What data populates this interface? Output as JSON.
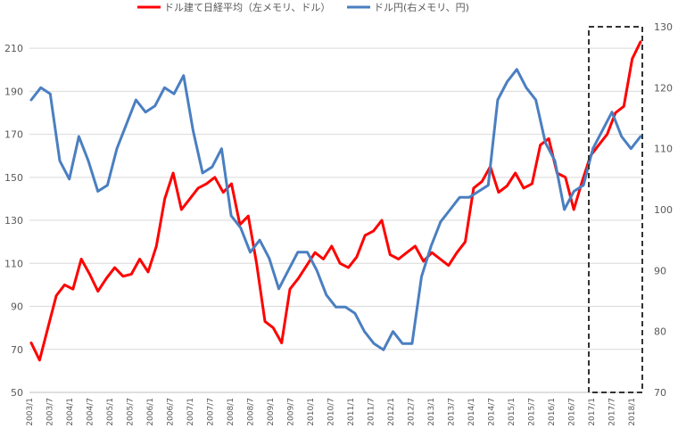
{
  "chart_data": {
    "type": "line",
    "legend_position": "top-center",
    "grid": true,
    "x_ticks": [
      "2003/1",
      "2003/7",
      "2004/1",
      "2004/7",
      "2005/1",
      "2005/7",
      "2006/1",
      "2006/7",
      "2007/1",
      "2007/7",
      "2008/1",
      "2008/7",
      "2009/1",
      "2009/7",
      "2010/1",
      "2010/7",
      "2011/1",
      "2011/7",
      "2012/1",
      "2012/7",
      "2013/1",
      "2013/7",
      "2014/1",
      "2014/7",
      "2015/1",
      "2015/7",
      "2016/1",
      "2016/7",
      "2017/1",
      "2017/7",
      "2018/1"
    ],
    "y_left": {
      "ticks": [
        50,
        70,
        90,
        110,
        130,
        150,
        170,
        190,
        210
      ],
      "lim": [
        50,
        220
      ]
    },
    "y_right": {
      "ticks": [
        70,
        80,
        90,
        100,
        110,
        120,
        130
      ],
      "lim": [
        70,
        130
      ]
    },
    "highlight_range": [
      "2017/1",
      "2018/4"
    ],
    "series": [
      {
        "name": "ドル建て日経平均（左メモリ、ドル）",
        "axis": "left",
        "color": "#ff0000",
        "values": [
          73,
          65,
          80,
          95,
          100,
          98,
          112,
          105,
          97,
          103,
          108,
          104,
          105,
          112,
          106,
          118,
          140,
          152,
          135,
          140,
          145,
          147,
          150,
          143,
          147,
          128,
          132,
          110,
          83,
          80,
          73,
          98,
          103,
          109,
          115,
          112,
          118,
          110,
          108,
          113,
          123,
          125,
          130,
          114,
          112,
          115,
          118,
          111,
          115,
          112,
          109,
          115,
          120,
          145,
          148,
          155,
          143,
          146,
          152,
          145,
          147,
          165,
          168,
          152,
          150,
          135,
          148,
          160,
          165,
          170,
          180,
          183,
          205,
          213
        ]
      },
      {
        "name": "ドル円(右メモリ、円)",
        "axis": "right",
        "color": "#4a7fc1",
        "values": [
          118,
          120,
          119,
          108,
          105,
          112,
          108,
          103,
          104,
          110,
          114,
          118,
          116,
          117,
          120,
          119,
          122,
          113,
          106,
          107,
          110,
          99,
          97,
          93,
          95,
          92,
          87,
          90,
          93,
          93,
          90,
          86,
          84,
          84,
          83,
          80,
          78,
          77,
          80,
          78,
          78,
          89,
          94,
          98,
          100,
          102,
          102,
          103,
          104,
          118,
          121,
          123,
          120,
          118,
          111,
          108,
          100,
          103,
          104,
          110,
          113,
          116,
          112,
          110,
          112
        ]
      }
    ]
  }
}
